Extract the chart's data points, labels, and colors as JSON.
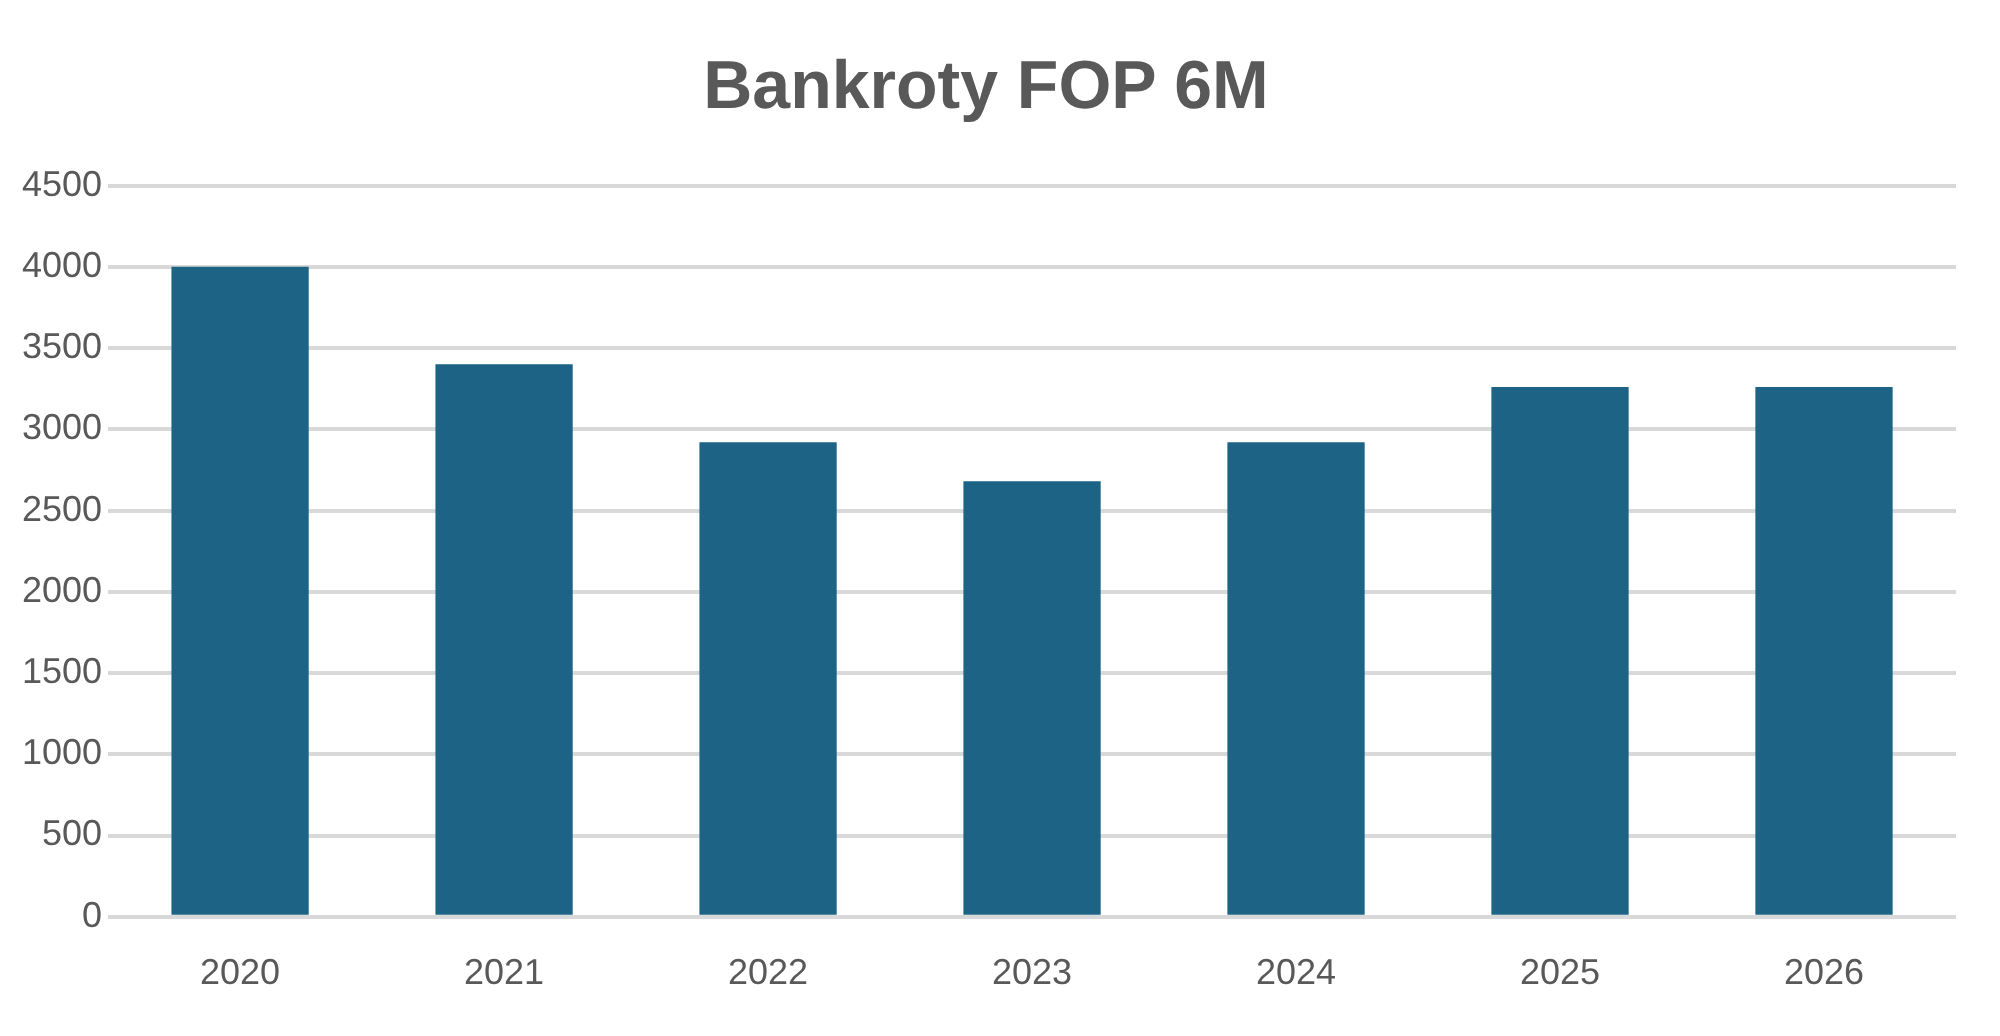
{
  "chart_data": {
    "type": "bar",
    "title": "Bankroty FOP 6M",
    "categories": [
      "2020",
      "2021",
      "2022",
      "2023",
      "2024",
      "2025",
      "2026"
    ],
    "values": [
      4000,
      3400,
      2920,
      2680,
      2920,
      3260,
      3260
    ],
    "color": "#1c6386",
    "ylim": [
      0,
      4500
    ],
    "yticks": [
      0,
      500,
      1000,
      1500,
      2000,
      2500,
      3000,
      3500,
      4000,
      4500
    ],
    "grid": "y",
    "legend": false
  }
}
